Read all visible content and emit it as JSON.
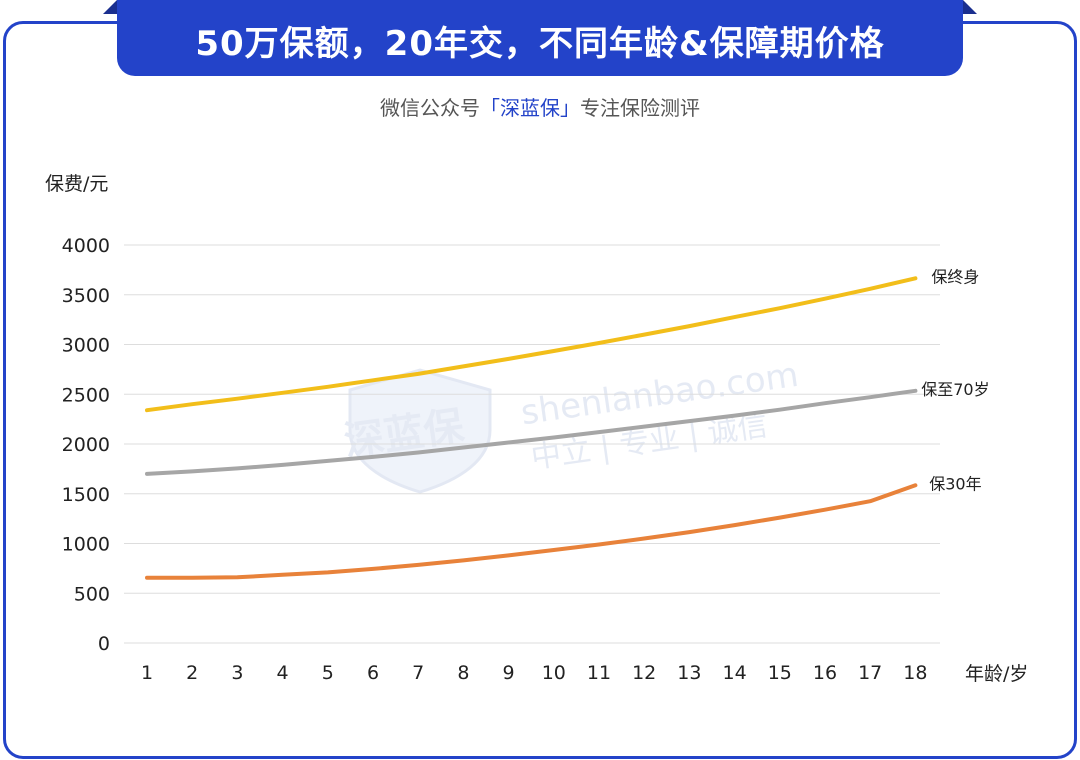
{
  "header": {
    "title": "50万保额，20年交，不同年龄&保障期价格",
    "subtitle_prefix": "微信公众号",
    "subtitle_brand": "「深蓝保」",
    "subtitle_suffix": "专注保险测评"
  },
  "watermark": {
    "logo_text": "深蓝保",
    "domain": "shenlanbao.com",
    "slogan": "中立 | 专业 | 诚信"
  },
  "colors": {
    "frame": "#2343c9",
    "grid": "#dddddd",
    "lifetime": "#f2be1a",
    "to70": "#a6a6a6",
    "30year": "#e8823a"
  },
  "chart_data": {
    "type": "line",
    "xlabel": "年龄/岁",
    "ylabel": "保费/元",
    "ylim": [
      0,
      4000
    ],
    "yticks": [
      0,
      500,
      1000,
      1500,
      2000,
      2500,
      3000,
      3500,
      4000
    ],
    "categories": [
      "1",
      "2",
      "3",
      "4",
      "5",
      "6",
      "7",
      "8",
      "9",
      "10",
      "11",
      "12",
      "13",
      "14",
      "15",
      "16",
      "17",
      "18"
    ],
    "grid": true,
    "series": [
      {
        "name": "保终身",
        "color": "#f2be1a",
        "values": [
          2340,
          2400,
          2455,
          2515,
          2575,
          2640,
          2705,
          2780,
          2855,
          2935,
          3015,
          3100,
          3185,
          3275,
          3365,
          3460,
          3560,
          3665
        ]
      },
      {
        "name": "保至70岁",
        "color": "#a6a6a6",
        "values": [
          1700,
          1725,
          1755,
          1790,
          1830,
          1870,
          1915,
          1965,
          2015,
          2065,
          2120,
          2175,
          2230,
          2285,
          2345,
          2410,
          2470,
          2535
        ]
      },
      {
        "name": "保30年",
        "color": "#e8823a",
        "values": [
          655,
          655,
          660,
          685,
          710,
          745,
          785,
          830,
          880,
          935,
          990,
          1050,
          1115,
          1185,
          1260,
          1340,
          1425,
          1585
        ]
      }
    ]
  }
}
